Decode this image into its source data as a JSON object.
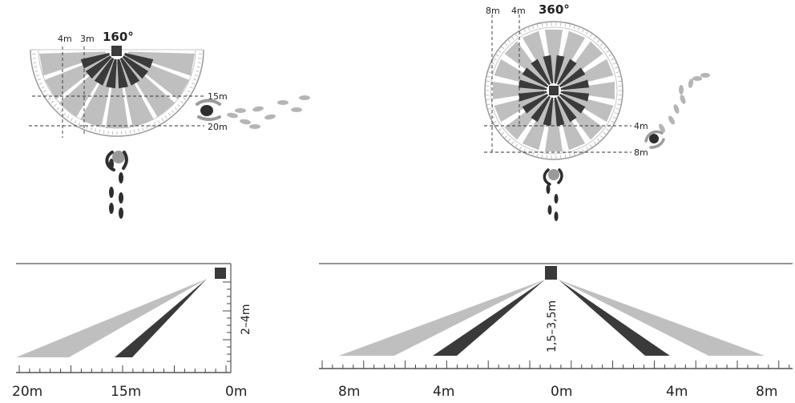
{
  "colors": {
    "wedge_light": "#bfbfbf",
    "wedge_dark": "#3a3a3a",
    "sensor": "#3a3a3a",
    "line": "#333333",
    "guide": "#888888",
    "footprint_dark": "#2e2e2e",
    "footprint_light": "#b5b5b5"
  },
  "top_left": {
    "angle_label": "160°",
    "distance_labels": [
      "4m",
      "3m"
    ],
    "range_labels": [
      "15m",
      "20m"
    ]
  },
  "top_right": {
    "angle_label": "360°",
    "distance_labels": [
      "8m",
      "4m"
    ],
    "range_labels": [
      "4m",
      "8m"
    ]
  },
  "side_left": {
    "height_label": "2–4m",
    "axis_labels": [
      "20m",
      "15m",
      "0m"
    ]
  },
  "side_right": {
    "height_label": "1,5–3,5m",
    "axis_labels": [
      "8m",
      "4m",
      "0m",
      "4m",
      "8m"
    ]
  }
}
